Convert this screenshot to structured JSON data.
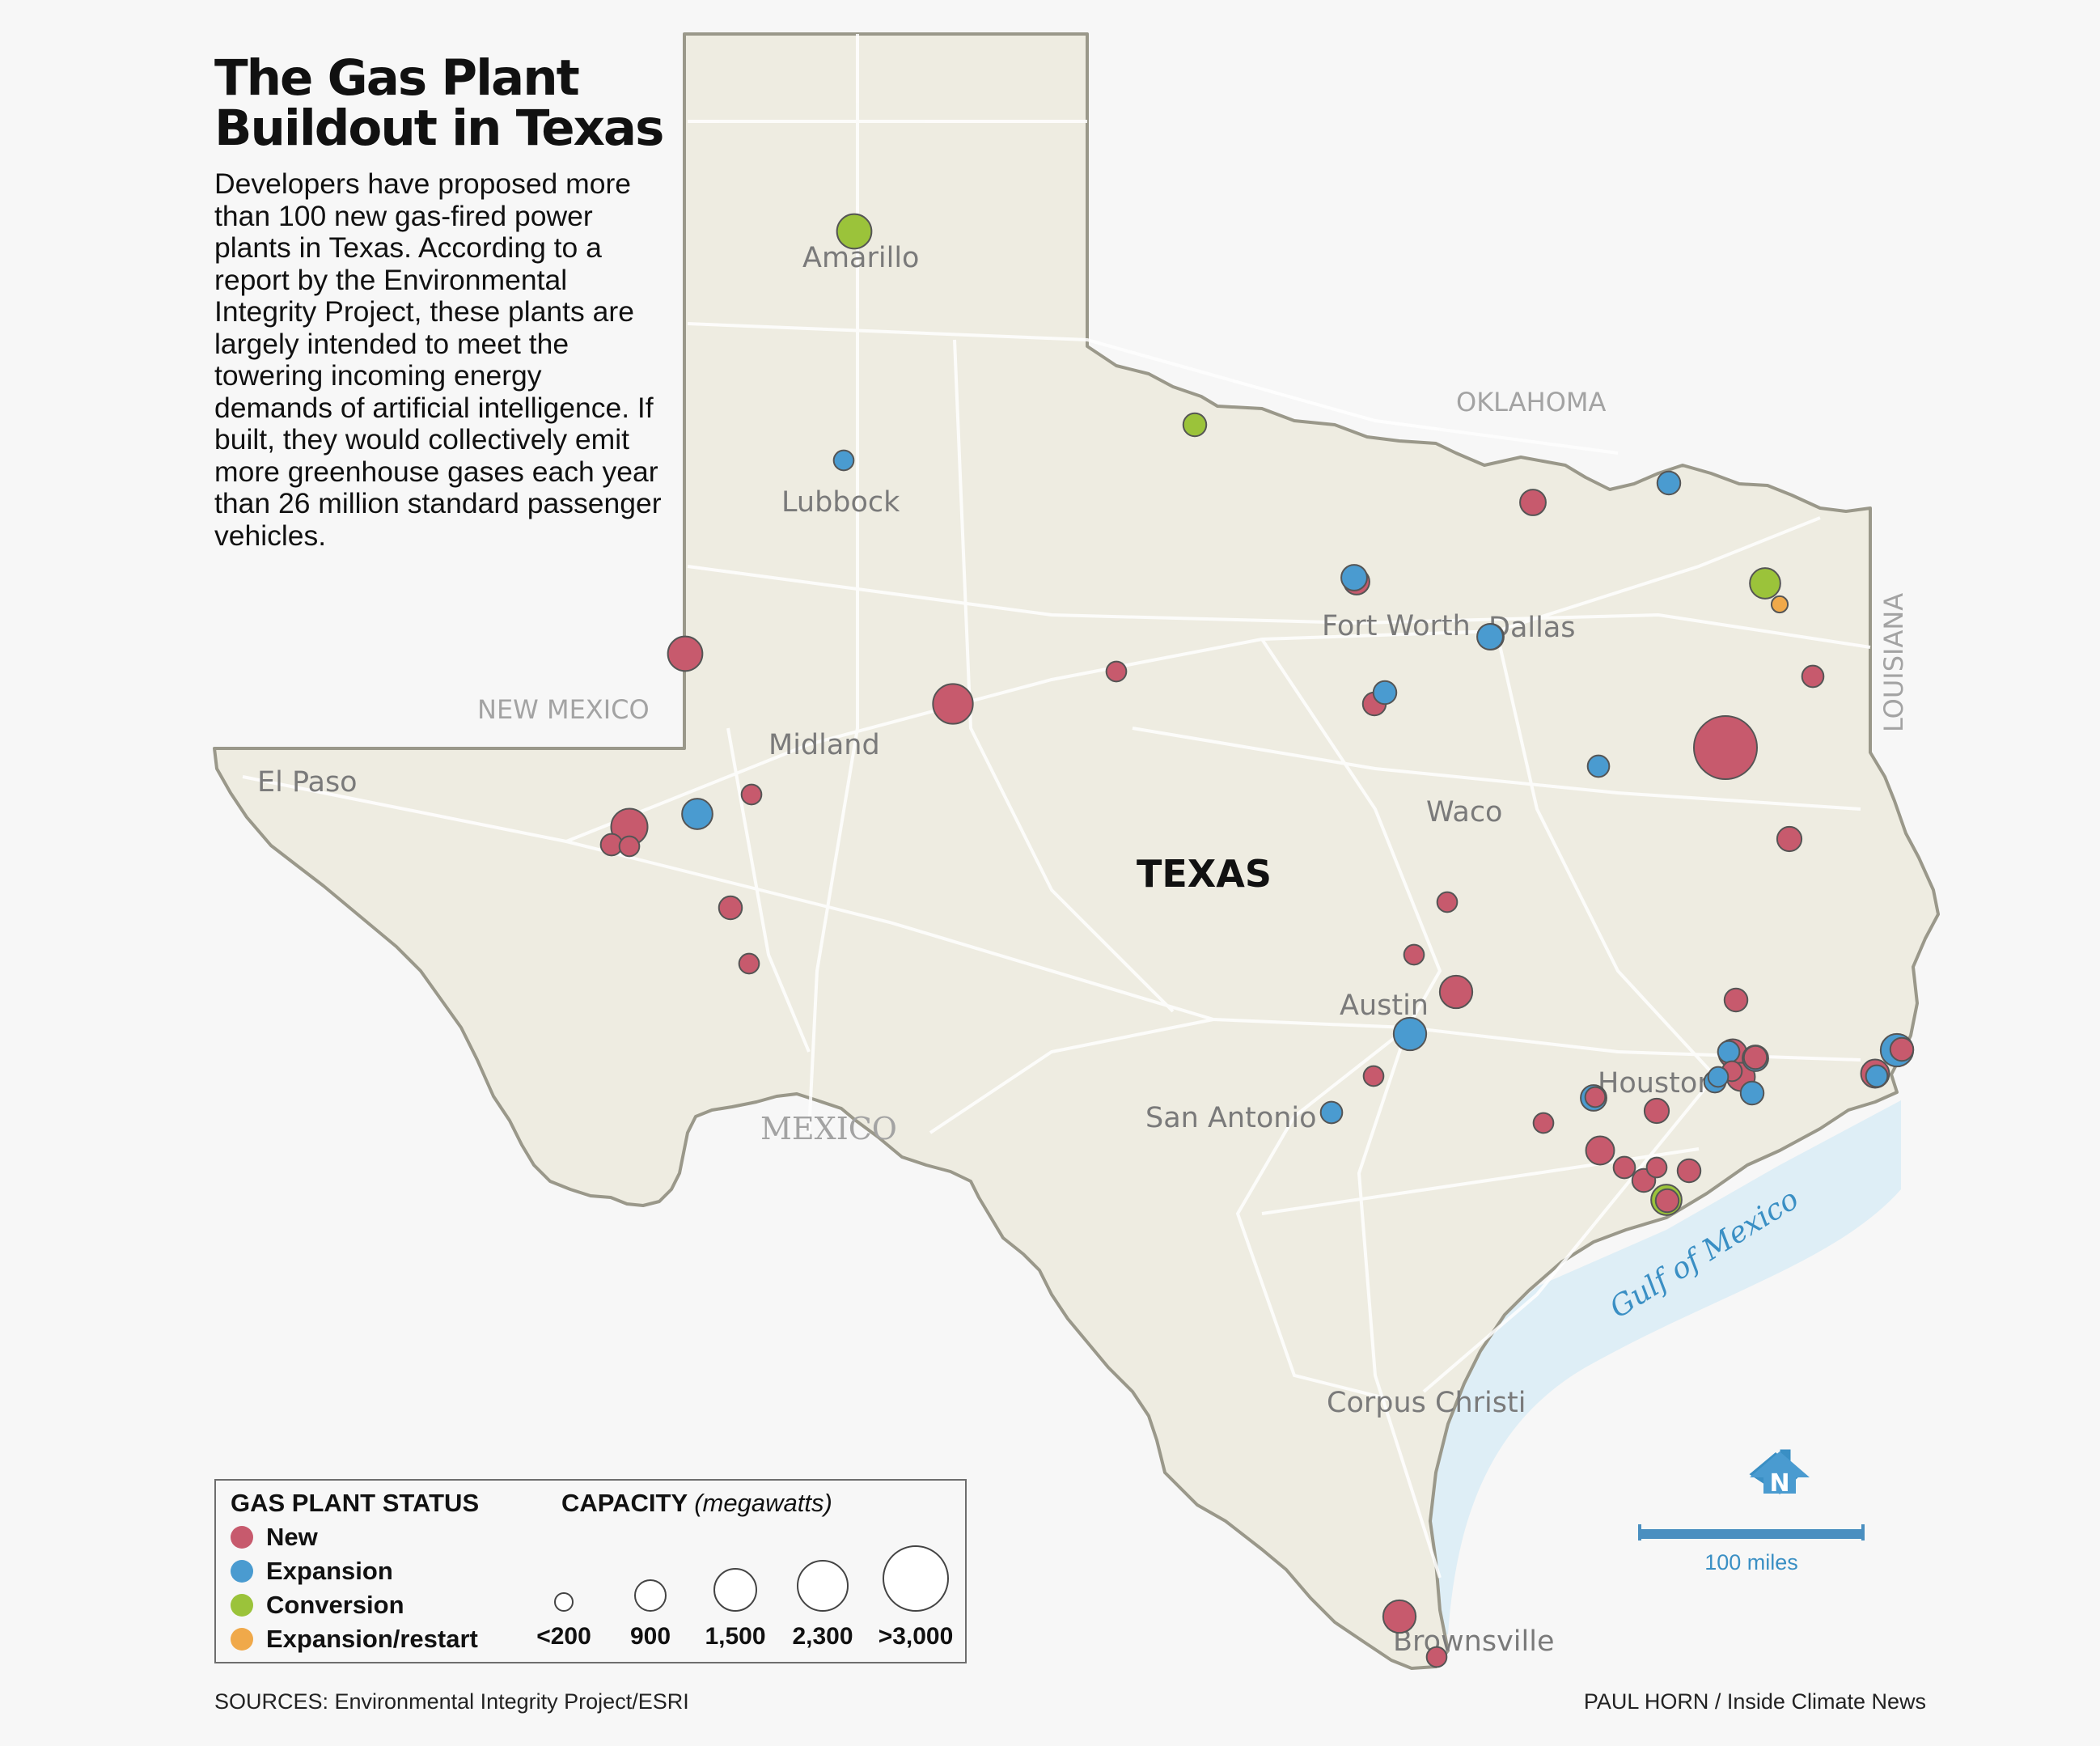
{
  "title": "The Gas Plant Buildout in Texas",
  "intro": "Developers have proposed more than 100 new gas-fired power plants in Texas. According to a report by the Environmental Integrity Project, these plants are largely intended to meet the towering incoming energy demands of artificial intelligence. If built, they would collectively emit more greenhouse gases each year than 26 million standard passenger vehicles.",
  "map_labels": {
    "state": "TEXAS",
    "neighbors": [
      "NEW MEXICO",
      "OKLAHOMA",
      "LOUISIANA",
      "MEXICO"
    ],
    "water": "Gulf of Mexico",
    "cities": [
      "Amarillo",
      "Lubbock",
      "Midland",
      "El Paso",
      "Fort Worth",
      "Dallas",
      "Waco",
      "Austin",
      "San Antonio",
      "Houston",
      "Corpus Christi",
      "Brownsville"
    ]
  },
  "legend": {
    "status_title": "GAS PLANT STATUS",
    "statuses": [
      {
        "label": "New",
        "color": "#c75a6d"
      },
      {
        "label": "Expansion",
        "color": "#4a9bd0"
      },
      {
        "label": "Conversion",
        "color": "#9bc33a"
      },
      {
        "label": "Expansion/restart",
        "color": "#f0a94a"
      }
    ],
    "capacity_title": "CAPACITY",
    "capacity_unit": "(megawatts)",
    "capacity_sizes": [
      {
        "label": "<200",
        "mw": 200
      },
      {
        "label": "900",
        "mw": 900
      },
      {
        "label": "1,500",
        "mw": 1500
      },
      {
        "label": "2,300",
        "mw": 2300
      },
      {
        "label": ">3,000",
        "mw": 3000
      }
    ]
  },
  "scale_label": "100 miles",
  "north_label": "N",
  "sources": "SOURCES: Environmental Integrity Project/ESRI",
  "credit": "PAUL HORN / Inside Climate News",
  "plants": [
    {
      "status": "Conversion",
      "mw": 900
    },
    {
      "status": "Expansion",
      "mw": 300
    },
    {
      "status": "Conversion",
      "mw": 400
    },
    {
      "status": "New",
      "mw": 900
    },
    {
      "status": "New",
      "mw": 1200
    },
    {
      "status": "New",
      "mw": 300
    },
    {
      "status": "Expansion",
      "mw": 700
    },
    {
      "status": "New",
      "mw": 1000
    },
    {
      "status": "New",
      "mw": 350
    },
    {
      "status": "New",
      "mw": 300
    },
    {
      "status": "New",
      "mw": 300
    },
    {
      "status": "New",
      "mw": 400
    },
    {
      "status": "New",
      "mw": 300
    },
    {
      "status": "New",
      "mw": 500
    },
    {
      "status": "Expansion",
      "mw": 400
    },
    {
      "status": "New",
      "mw": 500
    },
    {
      "status": "Expansion",
      "mw": 500
    },
    {
      "status": "New",
      "mw": 400
    },
    {
      "status": "Expansion",
      "mw": 400
    },
    {
      "status": "New",
      "mw": 500
    },
    {
      "status": "Expansion",
      "mw": 500
    },
    {
      "status": "Conversion",
      "mw": 700
    },
    {
      "status": "Expansion/restart",
      "mw": 200
    },
    {
      "status": "New",
      "mw": 350
    },
    {
      "status": "New",
      "mw": 3000
    },
    {
      "status": "Expansion",
      "mw": 350
    },
    {
      "status": "New",
      "mw": 450
    },
    {
      "status": "New",
      "mw": 300
    },
    {
      "status": "New",
      "mw": 300
    },
    {
      "status": "New",
      "mw": 800
    },
    {
      "status": "Expansion",
      "mw": 800
    },
    {
      "status": "New",
      "mw": 300
    },
    {
      "status": "Expansion",
      "mw": 350
    },
    {
      "status": "New",
      "mw": 400
    },
    {
      "status": "Conversion",
      "mw": 700
    },
    {
      "status": "New",
      "mw": 400
    },
    {
      "status": "New",
      "mw": 600
    },
    {
      "status": "New",
      "mw": 600
    },
    {
      "status": "Expansion",
      "mw": 350
    },
    {
      "status": "New",
      "mw": 400
    },
    {
      "status": "New",
      "mw": 300
    },
    {
      "status": "Expansion",
      "mw": 350
    },
    {
      "status": "New",
      "mw": 400
    },
    {
      "status": "Expansion",
      "mw": 500
    },
    {
      "status": "New",
      "mw": 300
    },
    {
      "status": "New",
      "mw": 300
    },
    {
      "status": "New",
      "mw": 600
    },
    {
      "status": "New",
      "mw": 350
    },
    {
      "status": "New",
      "mw": 300
    },
    {
      "status": "New",
      "mw": 400
    },
    {
      "status": "New",
      "mw": 400
    },
    {
      "status": "Expansion",
      "mw": 300
    },
    {
      "status": "New",
      "mw": 450
    },
    {
      "status": "Expansion",
      "mw": 800
    },
    {
      "status": "Expansion",
      "mw": 500
    },
    {
      "status": "New",
      "mw": 600
    },
    {
      "status": "Expansion",
      "mw": 350
    },
    {
      "status": "Expansion",
      "mw": 400
    },
    {
      "status": "New",
      "mw": 800
    },
    {
      "status": "New",
      "mw": 300
    }
  ]
}
